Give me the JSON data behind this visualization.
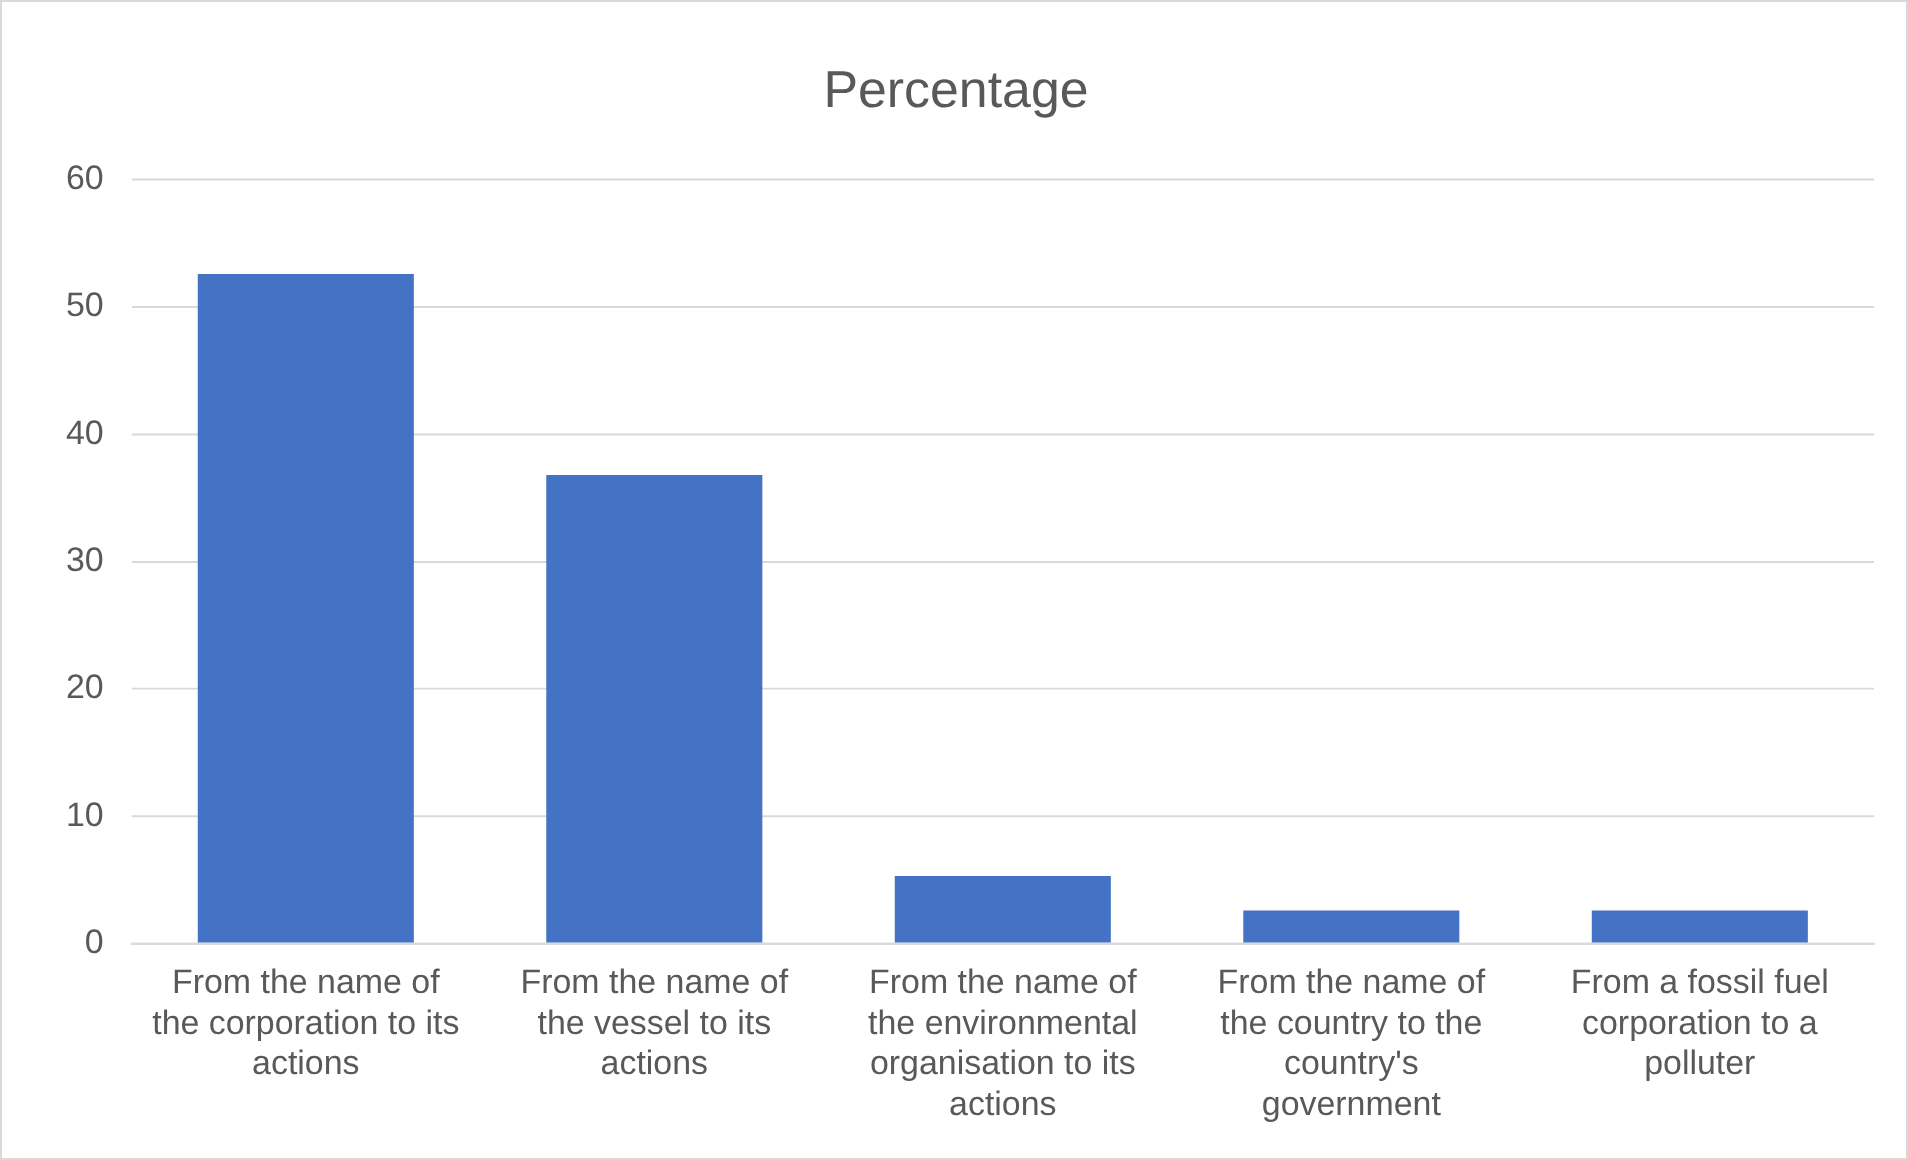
{
  "chart_data": {
    "type": "bar",
    "title": "Percentage",
    "categories": [
      "From the name of the corporation to its actions",
      "From the name of the vessel to its actions",
      "From the name of the environmental organisation to its actions",
      "From the name of the country to the country's government",
      "From a fossil fuel corporation to a polluter"
    ],
    "values": [
      52.6,
      36.8,
      5.3,
      2.6,
      2.6
    ],
    "color": "#4472c4",
    "ylim": [
      0,
      60
    ],
    "yticks": [
      0,
      10,
      20,
      30,
      40,
      50,
      60
    ],
    "grid": "y",
    "legend": false
  }
}
